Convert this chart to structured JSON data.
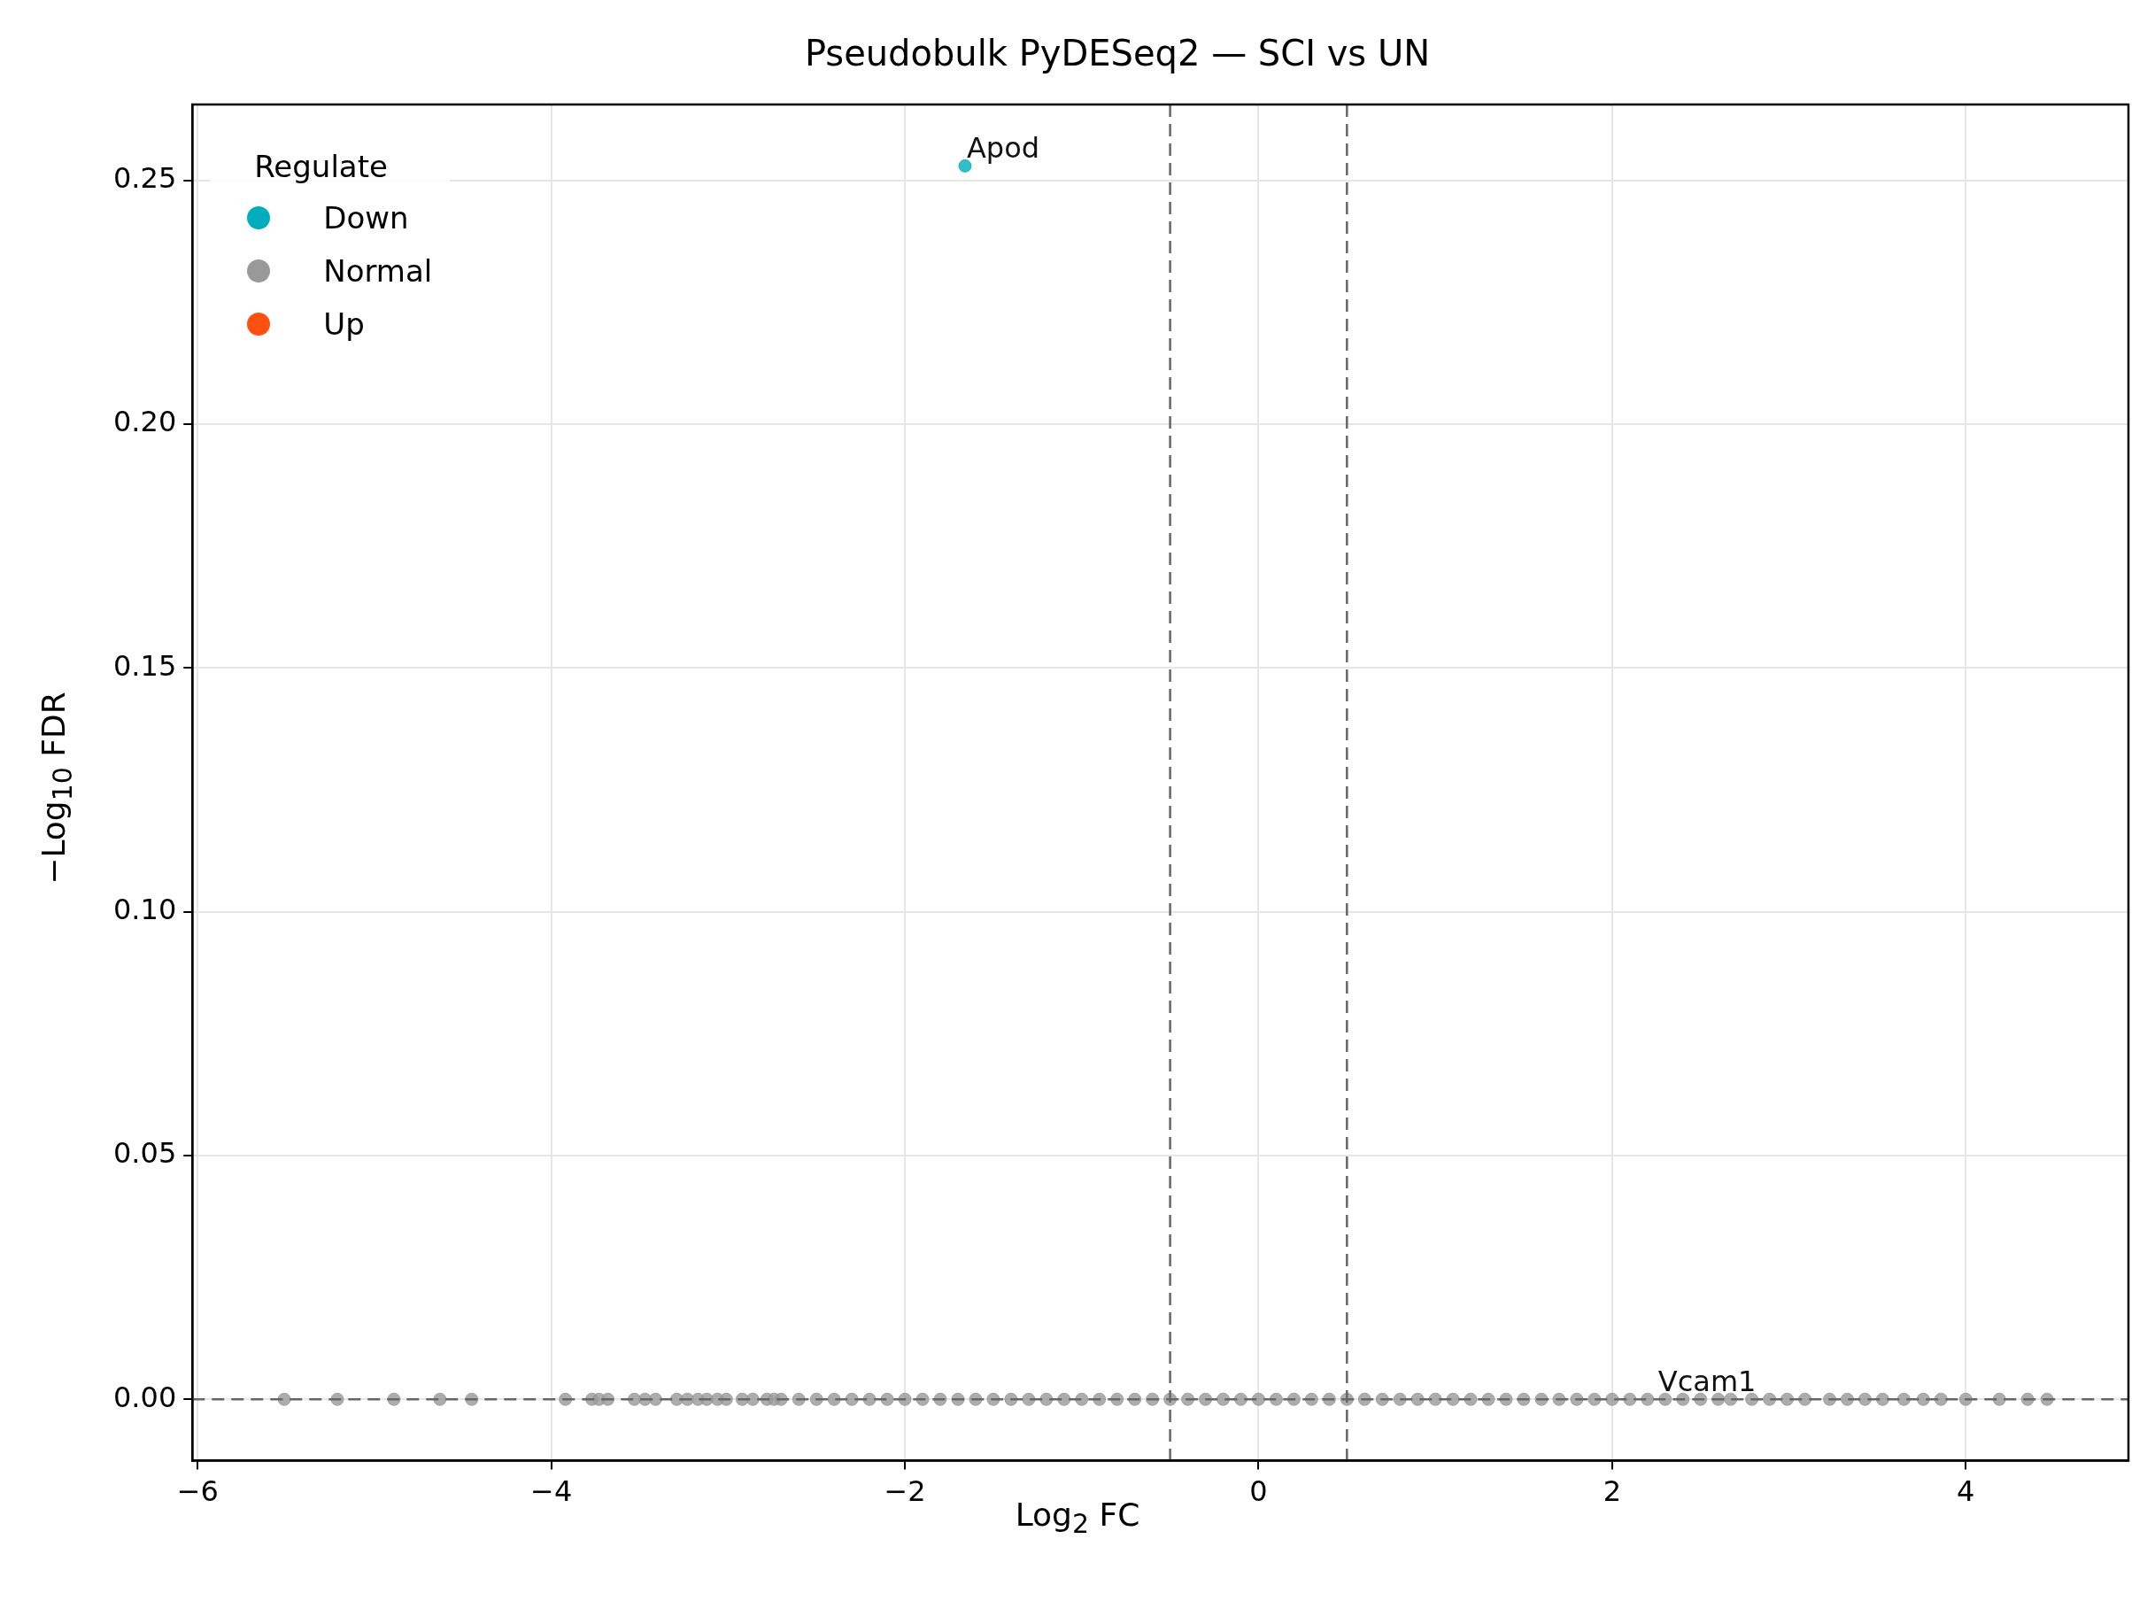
{
  "chart_data": {
    "type": "scatter",
    "title": "Pseudobulk PyDESeq2 — SCI vs UN",
    "xlabel": "Log$_{2}$ FC",
    "ylabel": "−Log$_{10}$ FDR",
    "legend_title": "Regulate",
    "legend": "top left",
    "grid": true,
    "marker": "circle",
    "xlim": [
      -6.03,
      4.92
    ],
    "ylim": [
      -0.0126,
      0.2656
    ],
    "xticks": [
      {
        "value": -6,
        "label": "−6"
      },
      {
        "value": -4,
        "label": "−4"
      },
      {
        "value": -2,
        "label": "−2"
      },
      0,
      2,
      4
    ],
    "yticks": [
      {
        "value": 0,
        "label": "0.00"
      },
      {
        "value": 0.05,
        "label": "0.05"
      },
      {
        "value": 0.1,
        "label": "0.10"
      },
      {
        "value": 0.15,
        "label": "0.15"
      },
      {
        "value": 0.2,
        "label": "0.20"
      },
      {
        "value": 0.25,
        "label": "0.25"
      }
    ],
    "series": [
      {
        "name": "Down",
        "color": "#00adbd",
        "x": [
          -1.66
        ],
        "values": [
          0.253
        ]
      },
      {
        "name": "Normal",
        "color": "#999999",
        "x": [
          -5.51,
          -5.21,
          -4.89,
          -4.63,
          -4.45,
          -3.92,
          -3.77,
          -3.73,
          -3.68,
          -3.53,
          -3.47,
          -3.41,
          -3.29,
          -3.23,
          -3.17,
          -3.12,
          -3.06,
          -3.01,
          -2.92,
          -2.86,
          -2.78,
          -2.74,
          -2.7,
          -2.6,
          -2.5,
          -2.4,
          -2.3,
          -2.2,
          -2.1,
          -2.0,
          -1.9,
          -1.8,
          -1.7,
          -1.6,
          -1.5,
          -1.4,
          -1.3,
          -1.2,
          -1.1,
          -1.0,
          -0.9,
          -0.8,
          -0.7,
          -0.6,
          -0.5,
          -0.4,
          -0.3,
          -0.2,
          -0.1,
          0,
          0.1,
          0.2,
          0.3,
          0.4,
          0.5,
          0.6,
          0.7,
          0.8,
          0.9,
          1.0,
          1.1,
          1.2,
          1.3,
          1.4,
          1.5,
          1.6,
          1.7,
          1.8,
          1.9,
          2.0,
          2.1,
          2.2,
          2.3,
          2.4,
          2.5,
          2.6,
          2.67,
          2.79,
          2.89,
          2.99,
          3.09,
          3.23,
          3.33,
          3.43,
          3.53,
          3.65,
          3.76,
          3.86,
          4.0,
          4.19,
          4.35,
          4.46
        ],
        "values": [
          0,
          0,
          0,
          0,
          0,
          0,
          0,
          0,
          0,
          0,
          0,
          0,
          0,
          0,
          0,
          0,
          0,
          0,
          0,
          0,
          0,
          0,
          0,
          0,
          0,
          0,
          0,
          0,
          0,
          0,
          0,
          0,
          0,
          0,
          0,
          0,
          0,
          0,
          0,
          0,
          0,
          0,
          0,
          0,
          0,
          0,
          0,
          0,
          0,
          0,
          0,
          0,
          0,
          0,
          0,
          0,
          0,
          0,
          0,
          0,
          0,
          0,
          0,
          0,
          0,
          0,
          0,
          0,
          0,
          0,
          0,
          0,
          0,
          0,
          0,
          0,
          0,
          0,
          0,
          0,
          0,
          0,
          0,
          0,
          0,
          0,
          0,
          0,
          0,
          0,
          0,
          0
        ]
      },
      {
        "name": "Up",
        "color": "#ff5010"
      }
    ],
    "ref_lines": [
      {
        "axis": "x",
        "value": -0.5,
        "line_style": "dashed",
        "color": "#666666"
      },
      {
        "axis": "x",
        "value": 0.5,
        "line_style": "dashed",
        "color": "#666666"
      },
      {
        "axis": "y",
        "value": 0,
        "line_style": "dashed",
        "color": "#666666"
      }
    ],
    "annotations": [
      {
        "text": "Apod",
        "x": -1.66,
        "y": 0.253
      },
      {
        "text": "Vcam1",
        "x": 2.25,
        "y": 0
      }
    ]
  }
}
